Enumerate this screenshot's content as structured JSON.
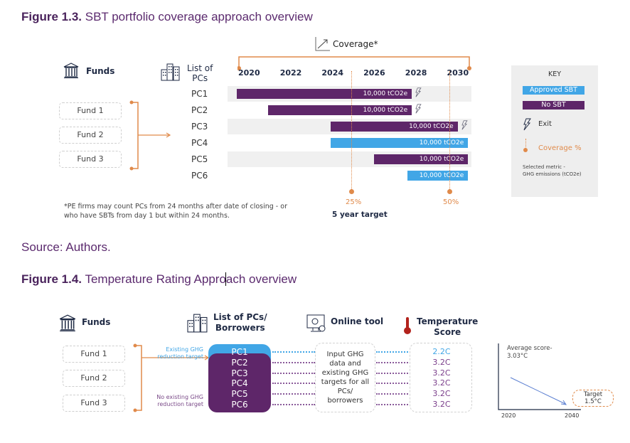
{
  "figure13": {
    "title_bold": "Figure 1.3.",
    "title_rest": " SBT portfolio coverage approach overview",
    "coverage_label": "Coverage*",
    "funds_header": "Funds",
    "pcs_header_line1": "List of",
    "pcs_header_line2": "PCs",
    "funds": [
      "Fund 1",
      "Fund 2",
      "Fund 3"
    ],
    "years": [
      "2020",
      "2022",
      "2024",
      "2026",
      "2028",
      "2030"
    ],
    "footnote_line1": "*PE firms may count PCs from 24 months after date of closing - or",
    "footnote_line2": "who have SBTs from day 1 but within  24 months.",
    "milestone_25": "25%",
    "milestone_50": "50%",
    "five_year_target": "5 year target",
    "key": {
      "title": "KEY",
      "approved": "Approved SBT",
      "no_sbt": "No SBT",
      "exit": "Exit",
      "coverage": "Coverage %",
      "metric_line1": "Selected metric -",
      "metric_line2": "GHG emissions (tCO2e)"
    },
    "colors": {
      "no_sbt": "#5e2669",
      "approved_sbt": "#41a6e6",
      "accent": "#e08a4a",
      "title": "#5b2a6e"
    }
  },
  "chart_data": {
    "type": "gantt",
    "title": "SBT portfolio coverage approach overview",
    "x_axis": {
      "label": "Coverage*",
      "ticks": [
        "2020",
        "2022",
        "2024",
        "2026",
        "2028",
        "2030"
      ],
      "range": [
        2020,
        2030.5
      ]
    },
    "rows": [
      {
        "name": "PC1",
        "start": 2019.9,
        "end": 2028.3,
        "status": "No SBT",
        "label": "10,000 tCO2e",
        "exit": true
      },
      {
        "name": "PC2",
        "start": 2021.4,
        "end": 2028.3,
        "status": "No SBT",
        "label": "10,000 tCO2e",
        "exit": true
      },
      {
        "name": "PC3",
        "start": 2024.4,
        "end": 2030.5,
        "status": "No SBT",
        "label": "10,000 tCO2e",
        "exit": true
      },
      {
        "name": "PC4",
        "start": 2024.4,
        "end": 2031.0,
        "status": "Approved SBT",
        "label": "10,000 tCO2e",
        "exit": false
      },
      {
        "name": "PC5",
        "start": 2026.5,
        "end": 2031.0,
        "status": "No SBT",
        "label": "10,000 tCO2e",
        "exit": false
      },
      {
        "name": "PC6",
        "start": 2028.1,
        "end": 2031.0,
        "status": "Approved SBT",
        "label": "10,000 tCO2e",
        "exit": false
      }
    ],
    "milestones": [
      {
        "year": 2025,
        "coverage": "25%"
      },
      {
        "year": 2030,
        "coverage": "50%"
      }
    ]
  },
  "source": "Source: Authors.",
  "figure14": {
    "title_bold": "Figure 1.4.",
    "title_rest_a": " Temperature Rating Appro",
    "title_rest_b": "ach overview",
    "funds_header": "Funds",
    "pcs_header_line1": "List of PCs/",
    "pcs_header_line2": "Borrowers",
    "tool_header": "Online tool",
    "temp_header_line1": "Temperature",
    "temp_header_line2": "Score",
    "funds": [
      "Fund 1",
      "Fund 2",
      "Fund 3"
    ],
    "existing_target_line1": "Existing GHG",
    "existing_target_line2": "reduction target",
    "no_target_line1": "No existing GHG",
    "no_target_line2": "reduction target",
    "pcs": [
      "PC1",
      "PC2",
      "PC3",
      "PC4",
      "PC5",
      "PC6"
    ],
    "tool_text": [
      "Input GHG",
      "data and",
      "existing GHG",
      "targets for all",
      "PCs/",
      "borrowers"
    ],
    "scores": [
      "2.2C",
      "3.2C",
      "3.2C",
      "3.2C",
      "3.2C",
      "3.2C"
    ],
    "mini_chart": {
      "avg_line1": "Average score-",
      "avg_line2": "3.03°C",
      "target_line1": "Target",
      "target_line2": "1.5°C",
      "x_start": "2020",
      "x_end": "2040"
    }
  }
}
